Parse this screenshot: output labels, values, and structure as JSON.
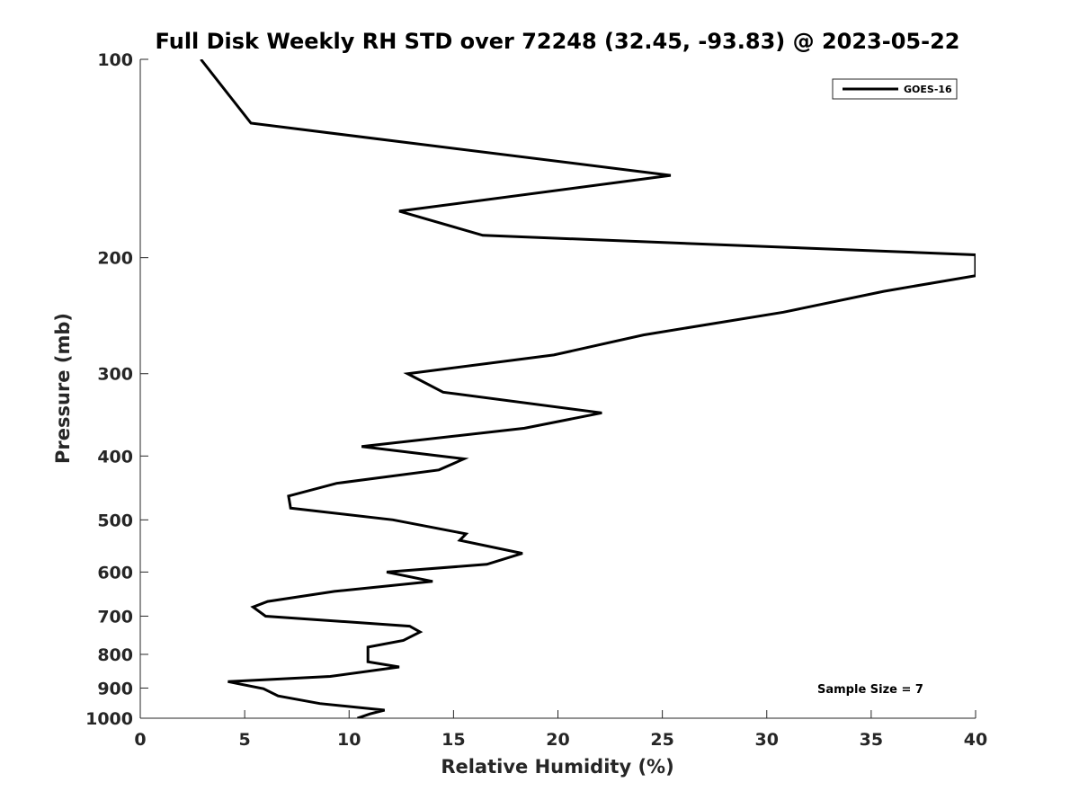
{
  "chart_data": {
    "type": "line",
    "title": "Full Disk Weekly RH STD over 72248 (32.45, -93.83) @ 2023-05-22",
    "xlabel": "Relative Humidity (%)",
    "ylabel": "Pressure (mb)",
    "xlim": [
      0,
      40
    ],
    "ylim": [
      100,
      1000
    ],
    "yscale": "log",
    "y_inverted": true,
    "grid": false,
    "xticks": [
      "0",
      "5",
      "10",
      "15",
      "20",
      "25",
      "30",
      "35",
      "40"
    ],
    "yticks": [
      "100",
      "200",
      "300",
      "400",
      "500",
      "600",
      "700",
      "800",
      "900",
      "1000"
    ],
    "legend": {
      "position": "top-right",
      "entries": [
        "GOES-16"
      ]
    },
    "annotation": "Sample Size = 7",
    "series": [
      {
        "name": "GOES-16",
        "color": "#000000",
        "points": [
          [
            2.9,
            100
          ],
          [
            5.3,
            125
          ],
          [
            25.4,
            150
          ],
          [
            12.4,
            170
          ],
          [
            16.4,
            185
          ],
          [
            40.0,
            198
          ],
          [
            40.0,
            213
          ],
          [
            35.6,
            225
          ],
          [
            30.8,
            242
          ],
          [
            24.1,
            262
          ],
          [
            19.8,
            281
          ],
          [
            12.8,
            300
          ],
          [
            14.5,
            320
          ],
          [
            22.1,
            344
          ],
          [
            18.4,
            363
          ],
          [
            10.6,
            387
          ],
          [
            15.5,
            404
          ],
          [
            14.3,
            420
          ],
          [
            9.4,
            440
          ],
          [
            7.1,
            460
          ],
          [
            7.2,
            480
          ],
          [
            12.1,
            500
          ],
          [
            15.6,
            525
          ],
          [
            15.3,
            537
          ],
          [
            18.3,
            562
          ],
          [
            16.6,
            584
          ],
          [
            11.8,
            600
          ],
          [
            14.0,
            620
          ],
          [
            9.3,
            642
          ],
          [
            6.1,
            665
          ],
          [
            5.4,
            678
          ],
          [
            6.0,
            700
          ],
          [
            12.9,
            725
          ],
          [
            13.4,
            740
          ],
          [
            12.6,
            762
          ],
          [
            10.9,
            780
          ],
          [
            10.9,
            800
          ],
          [
            10.9,
            821
          ],
          [
            12.4,
            836
          ],
          [
            9.1,
            864
          ],
          [
            4.2,
            880
          ],
          [
            5.9,
            902
          ],
          [
            6.6,
            925
          ],
          [
            8.6,
            950
          ],
          [
            11.7,
            972
          ],
          [
            11.0,
            985
          ],
          [
            10.4,
            1000
          ]
        ]
      }
    ]
  }
}
